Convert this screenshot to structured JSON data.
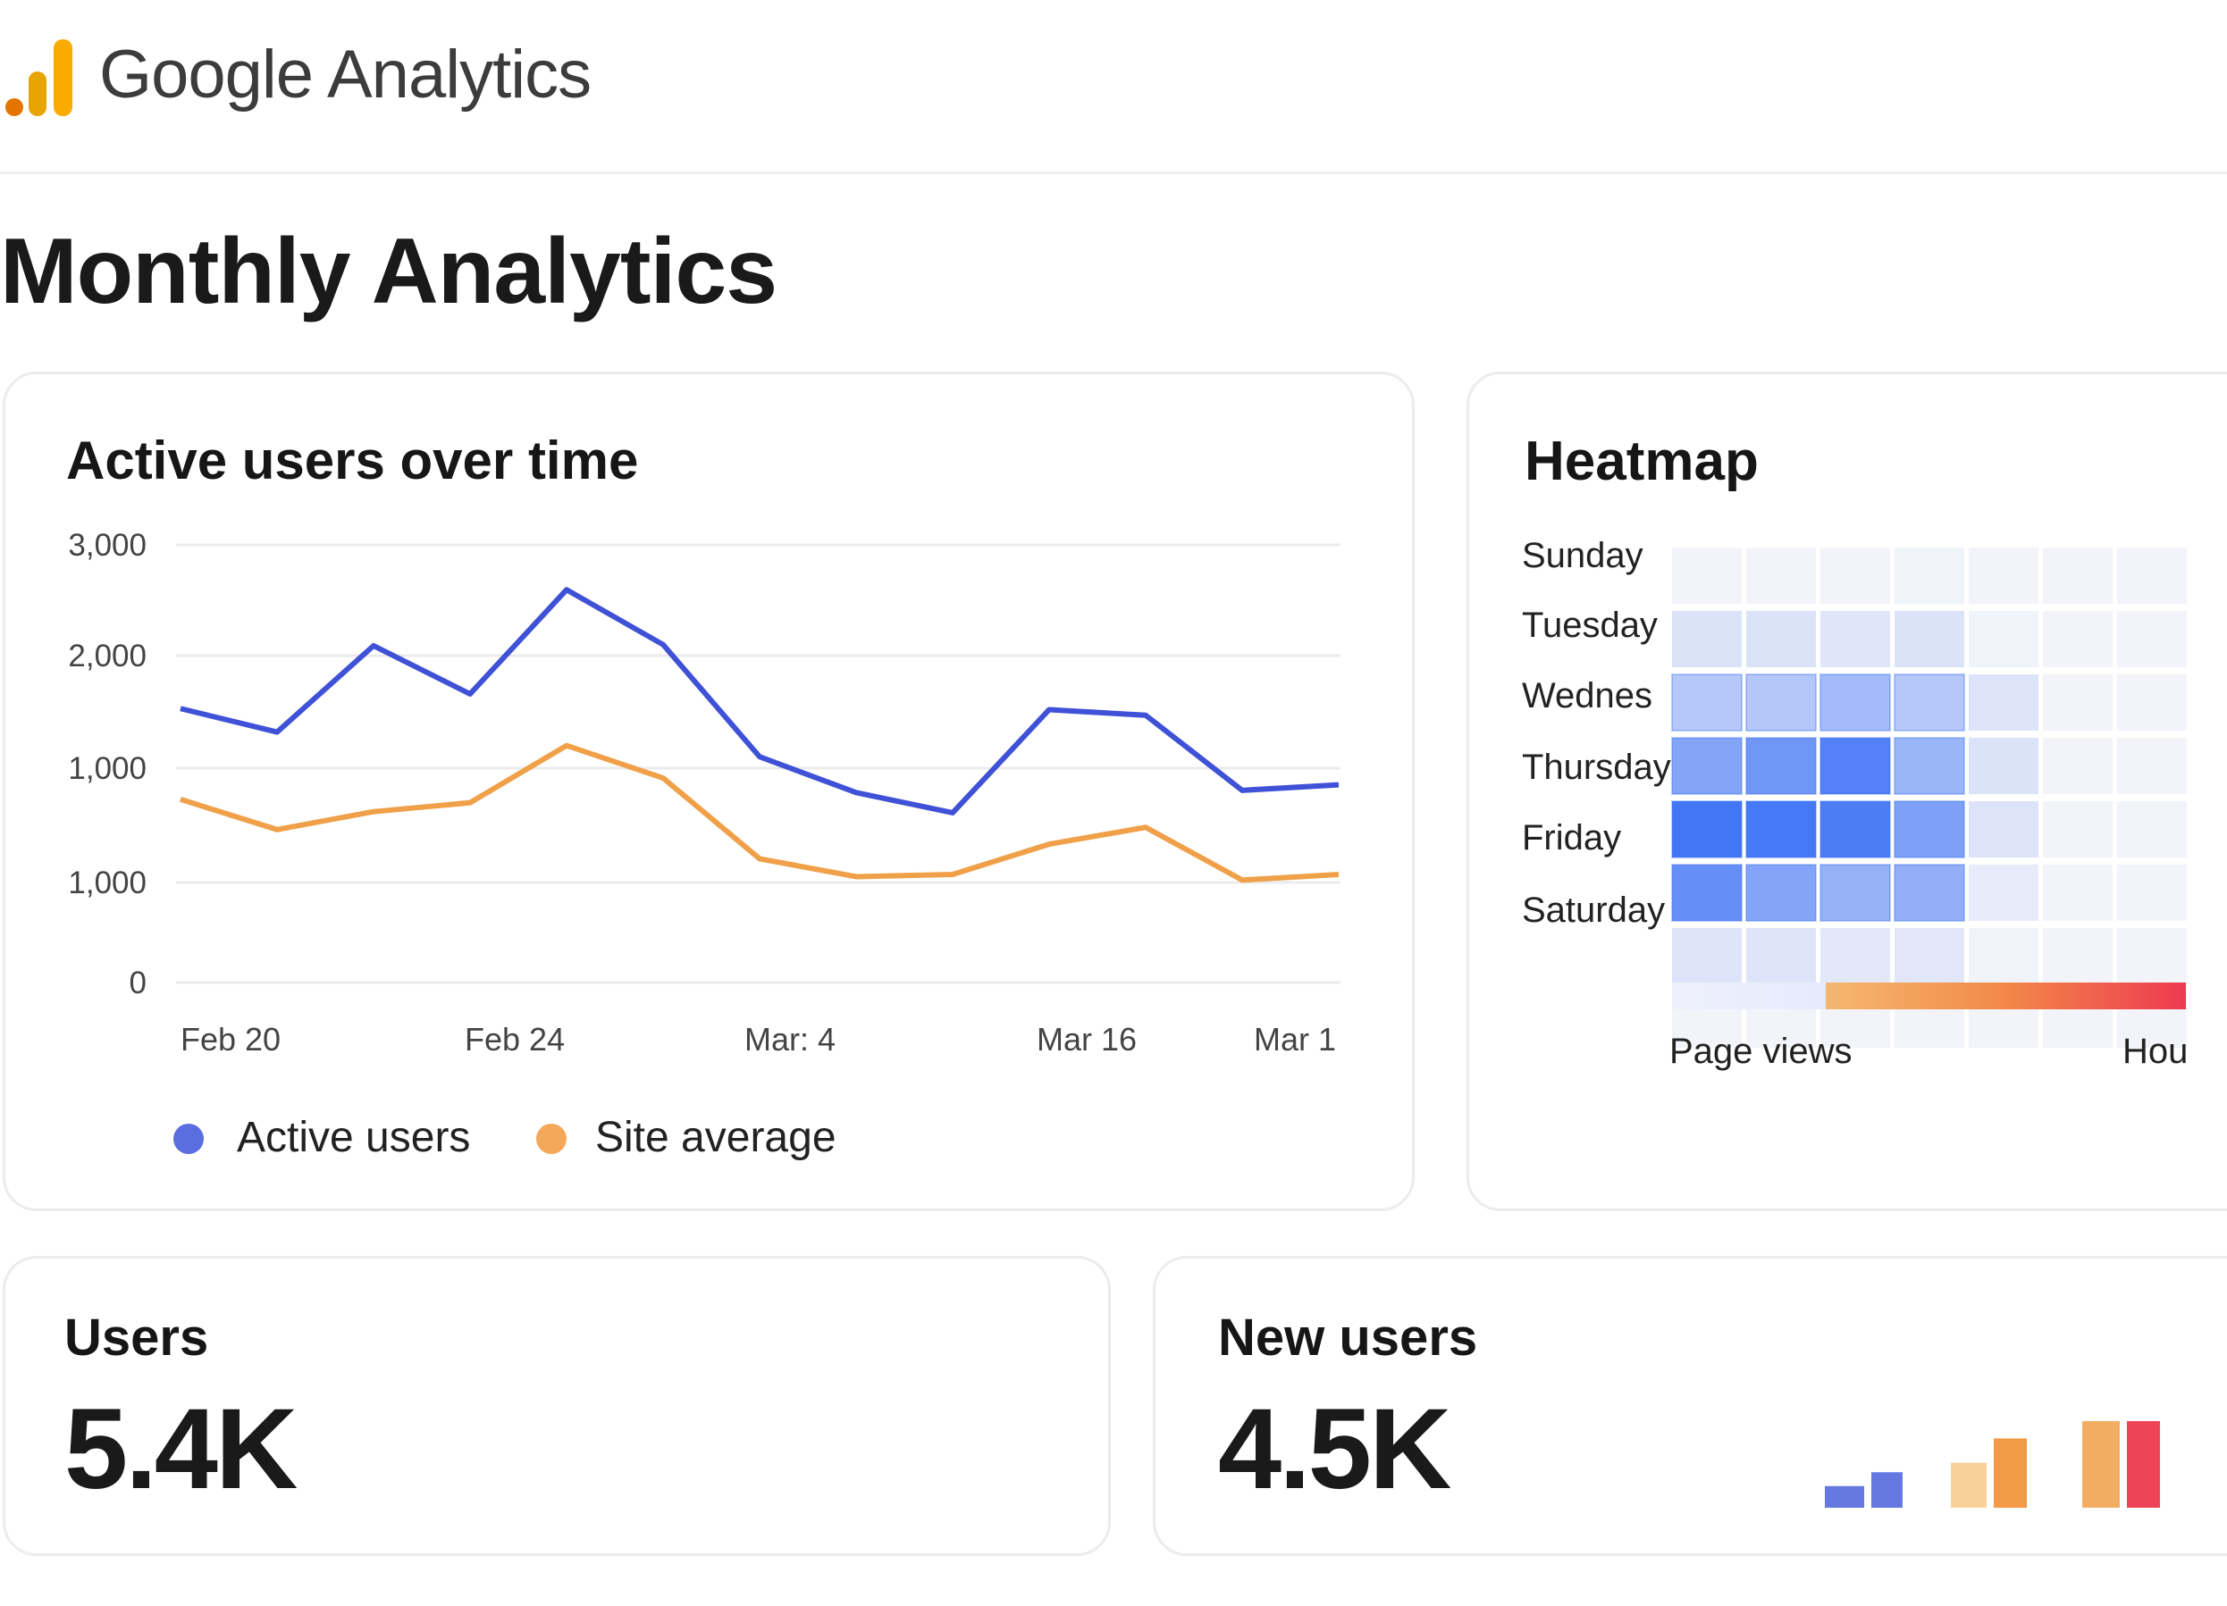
{
  "header": {
    "brand": "Google Analytics",
    "logo_icon": "google-analytics-bars-icon"
  },
  "page": {
    "title": "Monthly Analytics"
  },
  "active_users_card": {
    "title": "Active users over time",
    "legend": [
      {
        "label": "Active users",
        "color": "#3f51d6"
      },
      {
        "label": "Site average",
        "color": "#f0a048"
      }
    ]
  },
  "heatmap_card": {
    "title": "Heatmap",
    "row_labels": [
      "Sunday",
      "Tuesday",
      "Wednes",
      "Thursday",
      "Friday",
      "Saturday"
    ],
    "scale_labels": {
      "left": "Page views",
      "right": "Hou"
    }
  },
  "users_card": {
    "title": "Users",
    "value": "5.4K"
  },
  "new_users_card": {
    "title": "New users",
    "value": "4.5K"
  },
  "chart_data": [
    {
      "type": "line",
      "title": "Active users over time",
      "y_tick_labels": [
        "3,000",
        "2,000",
        "1,000",
        "1,000",
        "0"
      ],
      "x_tick_labels": [
        "Feb 20",
        "Feb 24",
        "Mar: 4",
        "Mar 16",
        "Mar 1"
      ],
      "grid": true,
      "legend_placement": "bottom",
      "series": [
        {
          "name": "Active users",
          "color": "#3f51d6",
          "values": [
            1540,
            1330,
            2100,
            1670,
            2600,
            2110,
            1110,
            790,
            610,
            1530,
            1480,
            810,
            860
          ]
        },
        {
          "name": "Site average",
          "color": "#f0a048",
          "values": [
            730,
            460,
            620,
            700,
            1210,
            920,
            200,
            40,
            60,
            330,
            480,
            10,
            60
          ]
        }
      ]
    },
    {
      "type": "heatmap",
      "title": "Heatmap",
      "low_color": "#f7f7fa",
      "high_color": "#3d72f5",
      "values": [
        [
          0.02,
          0.02,
          0.02,
          0.03,
          0.02,
          0.02,
          0.02
        ],
        [
          0.15,
          0.15,
          0.13,
          0.15,
          0.03,
          0.02,
          0.02
        ],
        [
          0.35,
          0.36,
          0.45,
          0.35,
          0.14,
          0.02,
          0.02
        ],
        [
          0.62,
          0.72,
          0.88,
          0.5,
          0.15,
          0.02,
          0.02
        ],
        [
          0.97,
          0.95,
          0.92,
          0.65,
          0.14,
          0.02,
          0.02
        ],
        [
          0.78,
          0.62,
          0.52,
          0.55,
          0.08,
          0.02,
          0.02
        ],
        [
          0.14,
          0.14,
          0.11,
          0.12,
          0.03,
          0.02,
          0.02
        ],
        [
          0.02,
          0.02,
          0.02,
          0.02,
          0.02,
          0.02,
          0.02
        ]
      ],
      "scale_colors": [
        "#e6eafc",
        "#f4b870",
        "#ee3a52"
      ]
    },
    {
      "type": "bar",
      "values": [
        0.25,
        0.41,
        0.52,
        0.8,
        1,
        1
      ],
      "colors": [
        "#6478e0",
        "#6478e0",
        "#f9d09a",
        "#f29a45",
        "#f3ad63",
        "#ee4556"
      ]
    }
  ]
}
